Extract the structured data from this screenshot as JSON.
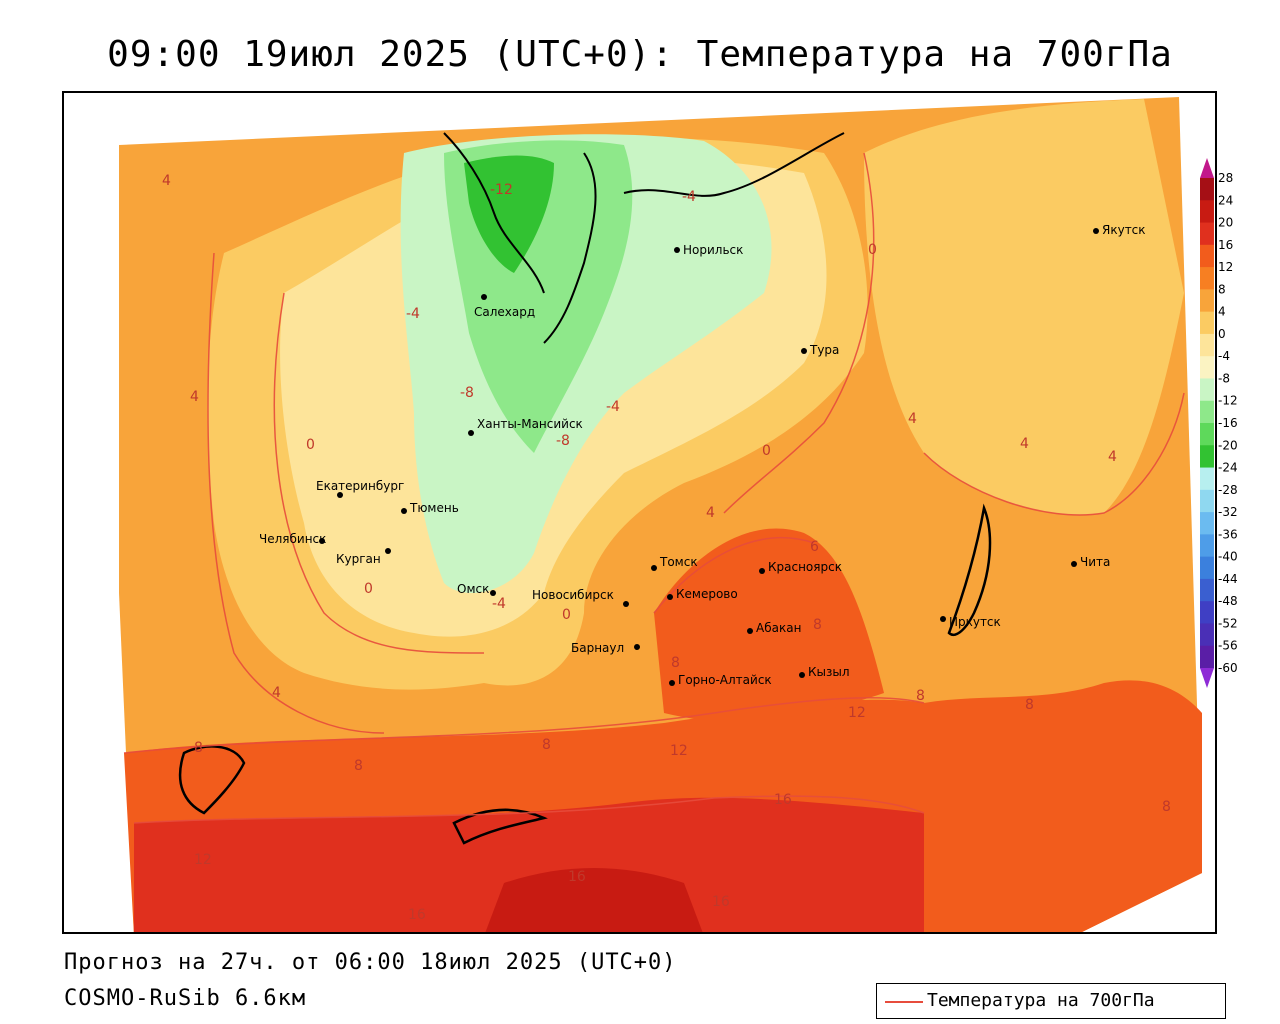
{
  "title": "09:00 19июл 2025 (UTC+0): Температура на 700гПа",
  "footer": {
    "forecast": "Прогноз на 27ч. от 06:00 18июл 2025 (UTC+0)",
    "model": "COSMO-RuSib 6.6км"
  },
  "legend": {
    "label": "Температура на 700гПа",
    "line_color": "#e74c3c"
  },
  "cities": [
    {
      "name": "Якутск"
    },
    {
      "name": "Норильск"
    },
    {
      "name": "Салехард"
    },
    {
      "name": "Тура"
    },
    {
      "name": "Ханты-Мансийск"
    },
    {
      "name": "Екатеринбург"
    },
    {
      "name": "Тюмень"
    },
    {
      "name": "Челябинск"
    },
    {
      "name": "Курган"
    },
    {
      "name": "Омск"
    },
    {
      "name": "Томск"
    },
    {
      "name": "Красноярск"
    },
    {
      "name": "Новосибирск"
    },
    {
      "name": "Кемерово"
    },
    {
      "name": "Абакан"
    },
    {
      "name": "Барнаул"
    },
    {
      "name": "Кызыл"
    },
    {
      "name": "Горно-Алтайск"
    },
    {
      "name": "Иркутск"
    },
    {
      "name": "Чита"
    }
  ],
  "isotherm_labels": [
    "4",
    "-12",
    "-4",
    "0",
    "-4",
    "-8",
    "-4",
    "-8",
    "4",
    "0",
    "0",
    "4",
    "4",
    "4",
    "6",
    "0",
    "-4",
    "0",
    "8",
    "8",
    "4",
    "8",
    "8",
    "8",
    "12",
    "8",
    "8",
    "12",
    "16",
    "12",
    "16",
    "16",
    "16",
    "8",
    "4"
  ],
  "colorbar": {
    "ticks": [
      "28",
      "24",
      "20",
      "16",
      "12",
      "8",
      "4",
      "0",
      "-4",
      "-8",
      "-12",
      "-16",
      "-20",
      "-24",
      "-28",
      "-32",
      "-36",
      "-40",
      "-44",
      "-48",
      "-52",
      "-56",
      "-60"
    ],
    "colors": [
      "#a50f15",
      "#c81b12",
      "#e0301e",
      "#f25c1c",
      "#f77f22",
      "#f8a43a",
      "#fbcb62",
      "#fde49a",
      "#fbf3c2",
      "#c9f5c5",
      "#8ee88a",
      "#5ed95b",
      "#32c232",
      "#b7efef",
      "#8fd8f0",
      "#6bbbf0",
      "#4e9de8",
      "#3b80dd",
      "#3a5fd0",
      "#3f3fc4",
      "#4a2fb6",
      "#5a1ea6",
      "#6c0f96"
    ]
  }
}
